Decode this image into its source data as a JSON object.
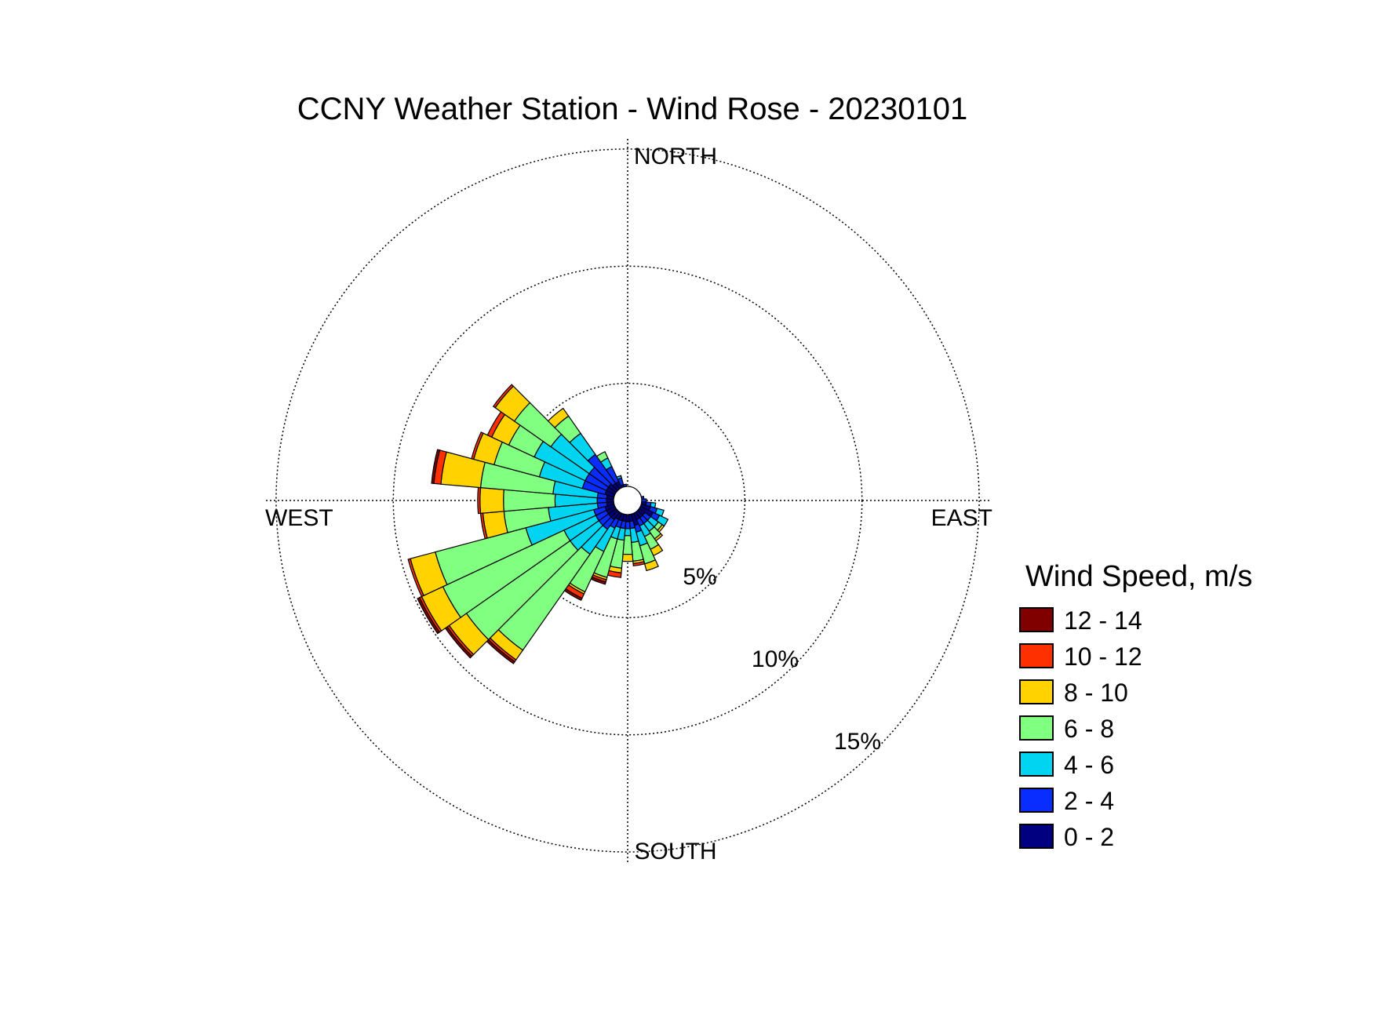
{
  "chart_data": {
    "type": "windrose",
    "title": "CCNY Weather Station - Wind Rose - 20230101",
    "direction_labels": {
      "north": "NORTH",
      "south": "SOUTH",
      "east": "EAST",
      "west": "WEST"
    },
    "radial_ticks": [
      5,
      10,
      15
    ],
    "radial_tick_labels": [
      "5%",
      "10%",
      "15%"
    ],
    "rmax": 15.5,
    "hole": 0.6,
    "grid": true,
    "legend_title": "Wind Speed, m/s",
    "legend_position": "right",
    "bins": [
      {
        "label": "0 - 2",
        "color": "#000080"
      },
      {
        "label": "2 - 4",
        "color": "#0A2DFF"
      },
      {
        "label": "4 - 6",
        "color": "#00D4F0"
      },
      {
        "label": "6 - 8",
        "color": "#80FF80"
      },
      {
        "label": "8 - 10",
        "color": "#FFD200"
      },
      {
        "label": "10 - 12",
        "color": "#FF3000"
      },
      {
        "label": "12 - 14",
        "color": "#800000"
      }
    ],
    "legend_order": [
      "12 - 14",
      "10 - 12",
      "8 - 10",
      "6 - 8",
      "4 - 6",
      "2 - 4",
      "0 - 2"
    ],
    "sector_width_deg": 10,
    "sectors": [
      {
        "dir": 0,
        "cum": [
          0.3,
          0.5
        ]
      },
      {
        "dir": 10,
        "cum": [
          0.3,
          0.5
        ]
      },
      {
        "dir": 60,
        "cum": [
          0.4
        ]
      },
      {
        "dir": 70,
        "cum": [
          0.4,
          0.6
        ]
      },
      {
        "dir": 80,
        "cum": [
          0.5,
          0.7
        ]
      },
      {
        "dir": 90,
        "cum": [
          0.6,
          0.8
        ]
      },
      {
        "dir": 100,
        "cum": [
          0.8,
          1.0,
          1.2
        ]
      },
      {
        "dir": 110,
        "cum": [
          1.0,
          1.3,
          1.6
        ]
      },
      {
        "dir": 120,
        "cum": [
          1.2,
          1.5,
          1.9
        ]
      },
      {
        "dir": 130,
        "cum": [
          0.9,
          1.2,
          1.6,
          1.8,
          1.9
        ]
      },
      {
        "dir": 140,
        "cum": [
          0.9,
          1.2,
          1.6,
          2.0,
          2.1
        ]
      },
      {
        "dir": 150,
        "cum": [
          0.9,
          1.2,
          1.7,
          2.3,
          2.6
        ]
      },
      {
        "dir": 160,
        "cum": [
          1.1,
          1.4,
          2.0,
          2.8,
          3.1
        ]
      },
      {
        "dir": 170,
        "cum": [
          0.9,
          1.2,
          1.8,
          2.6,
          2.7,
          2.8
        ]
      },
      {
        "dir": 180,
        "cum": [
          0.9,
          1.2,
          1.5,
          2.3,
          2.6
        ]
      },
      {
        "dir": 190,
        "cum": [
          0.9,
          1.2,
          1.7,
          2.9,
          3.1,
          3.3
        ]
      },
      {
        "dir": 200,
        "cum": [
          0.9,
          1.2,
          1.7,
          3.4,
          3.5,
          3.6,
          3.7
        ]
      },
      {
        "dir": 210,
        "cum": [
          0.9,
          1.3,
          2.4,
          4.3,
          4.4,
          4.6,
          4.7
        ]
      },
      {
        "dir": 220,
        "cum": [
          1.0,
          1.5,
          2.8,
          7.8,
          8.3,
          8.4,
          8.5
        ]
      },
      {
        "dir": 230,
        "cum": [
          1.0,
          1.5,
          3.0,
          8.4,
          9.3,
          9.4,
          9.5
        ]
      },
      {
        "dir": 240,
        "cum": [
          1.0,
          1.5,
          3.0,
          8.7,
          9.7,
          9.8,
          9.9
        ]
      },
      {
        "dir": 250,
        "cum": [
          1.0,
          1.5,
          4.5,
          8.5,
          9.6,
          9.7
        ]
      },
      {
        "dir": 260,
        "cum": [
          0.9,
          1.3,
          3.4,
          5.3,
          6.2,
          6.3
        ]
      },
      {
        "dir": 270,
        "cum": [
          0.9,
          1.3,
          3.1,
          5.3,
          6.3,
          6.4
        ]
      },
      {
        "dir": 280,
        "cum": [
          0.9,
          1.3,
          3.2,
          6.3,
          8.0,
          8.3,
          8.4
        ]
      },
      {
        "dir": 290,
        "cum": [
          1.0,
          2.0,
          3.9,
          5.9,
          6.8,
          6.9
        ]
      },
      {
        "dir": 300,
        "cum": [
          1.0,
          2.0,
          4.4,
          5.6,
          6.4,
          6.6
        ]
      },
      {
        "dir": 310,
        "cum": [
          1.0,
          2.0,
          4.0,
          5.9,
          6.9,
          7.0
        ]
      },
      {
        "dir": 320,
        "cum": [
          0.9,
          2.4,
          3.5,
          4.4,
          4.8
        ]
      },
      {
        "dir": 330,
        "cum": [
          0.9,
          1.6,
          2.0,
          2.3
        ]
      },
      {
        "dir": 340,
        "cum": [
          0.7,
          1.0,
          1.1
        ]
      },
      {
        "dir": 350,
        "cum": [
          0.5,
          0.7
        ]
      }
    ]
  }
}
